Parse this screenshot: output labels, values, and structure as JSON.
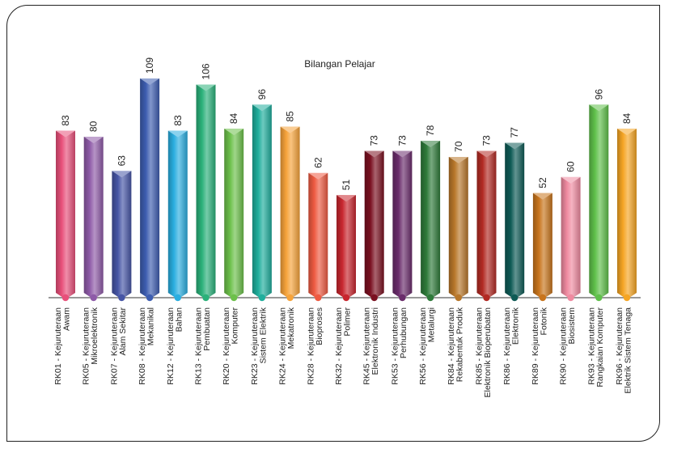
{
  "chart_data": {
    "type": "bar",
    "title": "Bilangan Pelajar",
    "categories": [
      [
        "RK01 - Kejuruteraan",
        "Awam"
      ],
      [
        "RK05 - Kejuruteraan",
        "Mikroelektronik"
      ],
      [
        "RK07 - Kejuruteraan",
        "Alam Sekitar"
      ],
      [
        "RK08 - Kejuruteraan",
        "Mekanikal"
      ],
      [
        "RK12 - Kejuruteraan",
        "Bahan"
      ],
      [
        "RK13 - Kejuruteraan",
        "Pembuatan"
      ],
      [
        "RK20 - Kejuruteraan",
        "Komputer"
      ],
      [
        "RK23 - Kejuruteraan",
        "Sistem Elektrik"
      ],
      [
        "RK24 - Kejuruteraan",
        "Mekatronik"
      ],
      [
        "RK28 - Kejuruteraan",
        "Bioproses"
      ],
      [
        "RK32 - Kejuruteraan",
        "Polimer"
      ],
      [
        "RK45 - Kejuruteraan",
        "Elektronik Industri"
      ],
      [
        "RK53 - Kejuruteraan",
        "Perhubungan"
      ],
      [
        "RK56 - Kejuruteraan",
        "Metalurgi"
      ],
      [
        "RK84 - Kejuruteraan",
        "Rekabentuk Produk"
      ],
      [
        "RK85 - Kejuruteraan",
        "Elektronik Bioperubatan"
      ],
      [
        "RK86 - Kejuruteraan",
        "Elektronik"
      ],
      [
        "RK89 - Kejuruteraan",
        "Fotonik"
      ],
      [
        "RK90 - Kejuruteraan",
        "Biosistem"
      ],
      [
        "RK93 - Kejuruteraan",
        "Rangkaian Komputer"
      ],
      [
        "RK96 - Kejuruteraan",
        "Elektrik Sistem Tenaga"
      ]
    ],
    "values": [
      83,
      80,
      63,
      109,
      83,
      106,
      84,
      96,
      85,
      62,
      51,
      73,
      73,
      78,
      70,
      73,
      77,
      52,
      60,
      96,
      84
    ],
    "colors": [
      "#e8507a",
      "#8e5aa8",
      "#4655a5",
      "#3d5db0",
      "#2aaee0",
      "#2bb17a",
      "#6cc04a",
      "#1fae9c",
      "#f6a33a",
      "#ee5a41",
      "#c8262e",
      "#7a1020",
      "#6a2c6b",
      "#2e7a3a",
      "#b8772a",
      "#b22a24",
      "#0e5a55",
      "#c8741c",
      "#ef8aa0",
      "#5fc04a",
      "#f5a524"
    ],
    "grid": false,
    "legend": "none"
  }
}
